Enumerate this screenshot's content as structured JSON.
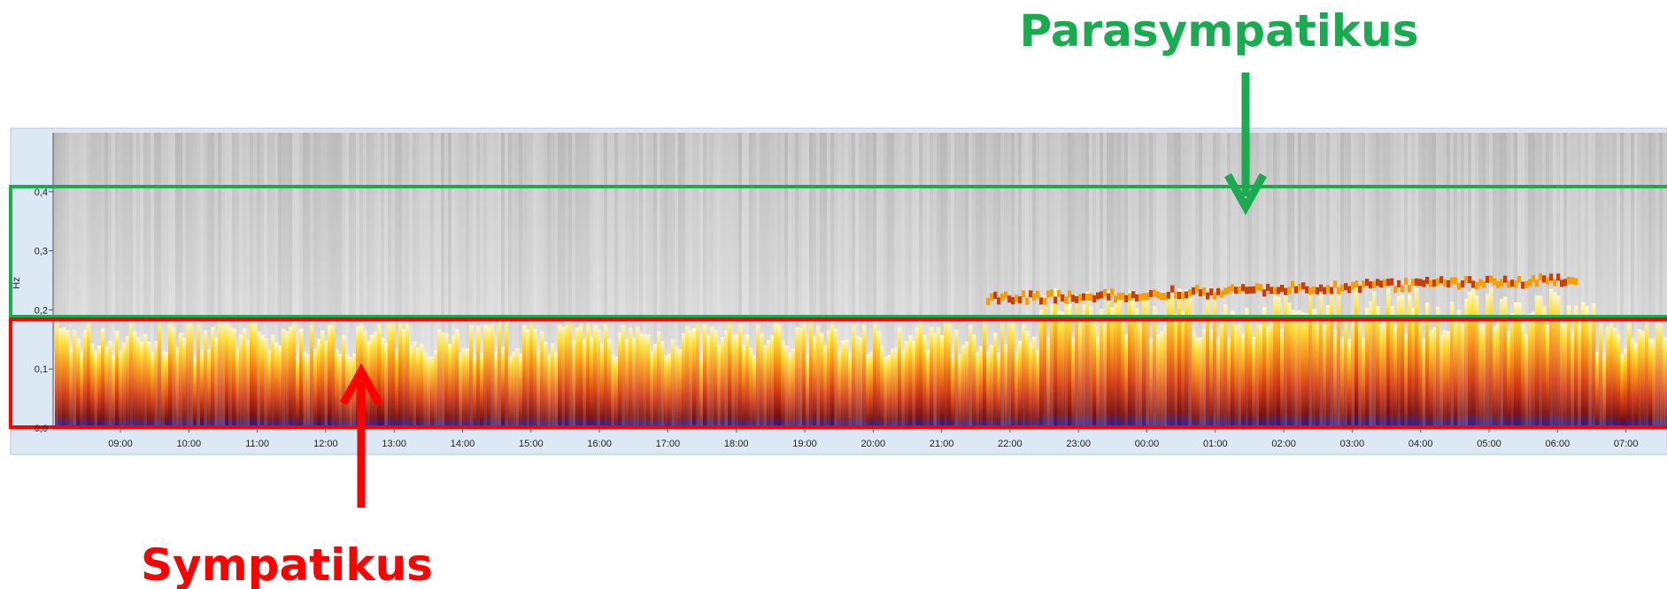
{
  "chart_data": {
    "type": "spectrogram",
    "ylabel": "Hz",
    "ylim": [
      0,
      0.5
    ],
    "yticks": [
      {
        "value": 0,
        "label": "0,0"
      },
      {
        "value": 0.1,
        "label": "0,1"
      },
      {
        "value": 0.2,
        "label": "0,2"
      },
      {
        "value": 0.3,
        "label": "0,3"
      },
      {
        "value": 0.4,
        "label": "0,4"
      }
    ],
    "categories": [
      "09:00",
      "10:00",
      "11:00",
      "12:00",
      "13:00",
      "14:00",
      "15:00",
      "16:00",
      "17:00",
      "18:00",
      "19:00",
      "20:00",
      "21:00",
      "22:00",
      "23:00",
      "00:00",
      "01:00",
      "02:00",
      "03:00",
      "04:00",
      "05:00",
      "06:00",
      "07:00"
    ],
    "annotations": [
      {
        "text": "Parasympatikus",
        "color": "#1aab50"
      },
      {
        "text": "Sympatikus",
        "color": "#ff0000"
      }
    ]
  }
}
